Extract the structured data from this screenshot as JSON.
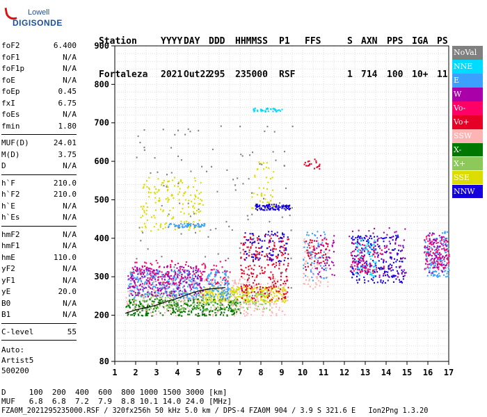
{
  "logo": {
    "line1": "Lowell",
    "line2": "DIGISONDE"
  },
  "header": {
    "labels": [
      "Station",
      "YYYY",
      "DAY",
      "DDD",
      "HHMMSS",
      "P1",
      "FFS",
      "S",
      "AXN",
      "PPS",
      "IGA",
      "PS"
    ],
    "values": [
      "Fortaleza",
      "2021",
      "Out22",
      "295",
      "235000",
      "RSF",
      "",
      "1",
      "714",
      "100",
      "10+",
      "11"
    ]
  },
  "params": [
    [
      {
        "k": "foF2",
        "v": "6.400"
      },
      {
        "k": "foF1",
        "v": "N/A"
      },
      {
        "k": "foF1p",
        "v": "N/A"
      },
      {
        "k": "foE",
        "v": "N/A"
      },
      {
        "k": "foEp",
        "v": "0.45"
      },
      {
        "k": "fxI",
        "v": "6.75"
      },
      {
        "k": "foEs",
        "v": "N/A"
      },
      {
        "k": "fmin",
        "v": "1.80"
      }
    ],
    [
      {
        "k": "MUF(D)",
        "v": "24.01"
      },
      {
        "k": "M(D)",
        "v": "3.75"
      },
      {
        "k": "D",
        "v": "N/A"
      }
    ],
    [
      {
        "k": "h`F",
        "v": "210.0"
      },
      {
        "k": "h`F2",
        "v": "210.0"
      },
      {
        "k": "h`E",
        "v": "N/A"
      },
      {
        "k": "h`Es",
        "v": "N/A"
      }
    ],
    [
      {
        "k": "hmF2",
        "v": "N/A"
      },
      {
        "k": "hmF1",
        "v": "N/A"
      },
      {
        "k": "hmE",
        "v": "110.0"
      },
      {
        "k": "yF2",
        "v": "N/A"
      },
      {
        "k": "yF1",
        "v": "N/A"
      },
      {
        "k": "yE",
        "v": "20.0"
      },
      {
        "k": "B0",
        "v": "N/A"
      },
      {
        "k": "B1",
        "v": "N/A"
      }
    ],
    [
      {
        "k": "C-level",
        "v": "55"
      }
    ]
  ],
  "auto": [
    "Auto:",
    "Artist5",
    "500200"
  ],
  "legend": [
    {
      "label": "NoVal",
      "color": "#808080"
    },
    {
      "label": "NNE",
      "color": "#00dcff"
    },
    {
      "label": "E",
      "color": "#3ca0ff"
    },
    {
      "label": "W",
      "color": "#aa00aa"
    },
    {
      "label": "Vo-",
      "color": "#ff0066"
    },
    {
      "label": "Vo+",
      "color": "#e60026"
    },
    {
      "label": "SSW",
      "color": "#ffb4b4"
    },
    {
      "label": "X-",
      "color": "#007800"
    },
    {
      "label": "X+",
      "color": "#8cc85a"
    },
    {
      "label": "SSE",
      "color": "#dcdc00"
    },
    {
      "label": "NNW",
      "color": "#1400dc"
    }
  ],
  "bottom": {
    "line1": "D     100  200  400  600  800 1000 1500 3000 [km]",
    "line2": "MUF   6.8  6.8  7.2  7.9  8.8 10.1 14.0 24.0 [MHz]",
    "line3": "FZA0M_2021295235000.RSF / 320fx256h 50 kHz 5.0 km / DPS-4 FZA0M 904 / 3.9 S 321.6 E   Ion2Png 1.3.20"
  },
  "chart_data": {
    "type": "scatter",
    "title": "",
    "xlabel": "",
    "ylabel": "",
    "xlim": [
      1,
      17
    ],
    "ylim": [
      80,
      900
    ],
    "xticks": [
      "1",
      "2",
      "3",
      "4",
      "5",
      "6",
      "7",
      "8",
      "9",
      "10",
      "11",
      "12",
      "13",
      "14",
      "15",
      "16",
      "17"
    ],
    "yticks": [
      "80",
      "200",
      "300",
      "400",
      "500",
      "600",
      "700",
      "800",
      "900"
    ],
    "grid": true,
    "trace": {
      "name": "",
      "x": [
        1.5,
        1.9,
        2.3,
        2.7,
        3.1,
        3.5,
        3.9,
        4.3,
        4.7,
        5.1,
        5.5,
        5.9,
        6.3
      ],
      "y": [
        205,
        212,
        218,
        222,
        228,
        236,
        242,
        250,
        258,
        264,
        268,
        270,
        272
      ]
    },
    "clusters": [
      {
        "color": "#ffb4b4",
        "x": [
          1.5,
          9.3
        ],
        "y": [
          200,
          300
        ],
        "n": 400
      },
      {
        "color": "#007800",
        "x": [
          1.5,
          7.0
        ],
        "y": [
          200,
          245
        ],
        "n": 300
      },
      {
        "color": "#8cc85a",
        "x": [
          1.8,
          8.5
        ],
        "y": [
          215,
          265
        ],
        "n": 250
      },
      {
        "color": "#dcdc00",
        "x": [
          5.0,
          9.2
        ],
        "y": [
          235,
          275
        ],
        "n": 250
      },
      {
        "color": "#3ca0ff",
        "x": [
          1.6,
          6.5
        ],
        "y": [
          245,
          320
        ],
        "n": 400
      },
      {
        "color": "#aa00aa",
        "x": [
          1.6,
          5.2
        ],
        "y": [
          250,
          330
        ],
        "n": 250
      },
      {
        "color": "#e60026",
        "x": [
          7.0,
          9.3
        ],
        "y": [
          240,
          410
        ],
        "n": 250
      },
      {
        "color": "#ff0066",
        "x": [
          1.8,
          6.5
        ],
        "y": [
          280,
          345
        ],
        "n": 120
      },
      {
        "color": "#dcdc00",
        "x": [
          2.2,
          5.2
        ],
        "y": [
          420,
          560
        ],
        "n": 160
      },
      {
        "color": "#3ca0ff",
        "x": [
          3.5,
          5.3
        ],
        "y": [
          430,
          440
        ],
        "n": 60
      },
      {
        "color": "#1400dc",
        "x": [
          7.7,
          9.4
        ],
        "y": [
          475,
          490
        ],
        "n": 90
      },
      {
        "color": "#00dcff",
        "x": [
          7.6,
          9.0
        ],
        "y": [
          730,
          740
        ],
        "n": 40
      },
      {
        "color": "#1400dc",
        "x": [
          7.2,
          9.3
        ],
        "y": [
          340,
          420
        ],
        "n": 90
      },
      {
        "color": "#dcdc00",
        "x": [
          7.5,
          8.6
        ],
        "y": [
          480,
          600
        ],
        "n": 40
      },
      {
        "color": "#e60026",
        "x": [
          10.0,
          10.8
        ],
        "y": [
          580,
          610
        ],
        "n": 20
      },
      {
        "color": "#ffb4b4",
        "x": [
          10.0,
          11.2
        ],
        "y": [
          270,
          400
        ],
        "n": 70
      },
      {
        "color": "#3ca0ff",
        "x": [
          10.0,
          11.2
        ],
        "y": [
          290,
          420
        ],
        "n": 70
      },
      {
        "color": "#e60026",
        "x": [
          10.0,
          11.2
        ],
        "y": [
          320,
          400
        ],
        "n": 50
      },
      {
        "color": "#aa00aa",
        "x": [
          10.5,
          11.5
        ],
        "y": [
          300,
          410
        ],
        "n": 40
      },
      {
        "color": "#1400dc",
        "x": [
          12.3,
          14.9
        ],
        "y": [
          285,
          410
        ],
        "n": 220
      },
      {
        "color": "#00dcff",
        "x": [
          12.5,
          13.5
        ],
        "y": [
          300,
          400
        ],
        "n": 80
      },
      {
        "color": "#ff0066",
        "x": [
          12.3,
          14.0
        ],
        "y": [
          310,
          390
        ],
        "n": 70
      },
      {
        "color": "#aa00aa",
        "x": [
          12.2,
          15.0
        ],
        "y": [
          300,
          430
        ],
        "n": 90
      },
      {
        "color": "#3ca0ff",
        "x": [
          15.8,
          17.0
        ],
        "y": [
          300,
          420
        ],
        "n": 140
      },
      {
        "color": "#ff0066",
        "x": [
          15.8,
          17.0
        ],
        "y": [
          320,
          410
        ],
        "n": 90
      },
      {
        "color": "#aa00aa",
        "x": [
          15.8,
          16.9
        ],
        "y": [
          310,
          420
        ],
        "n": 70
      },
      {
        "color": "#808080",
        "x": [
          2.0,
          9.5
        ],
        "y": [
          200,
          700
        ],
        "n": 120
      }
    ]
  }
}
